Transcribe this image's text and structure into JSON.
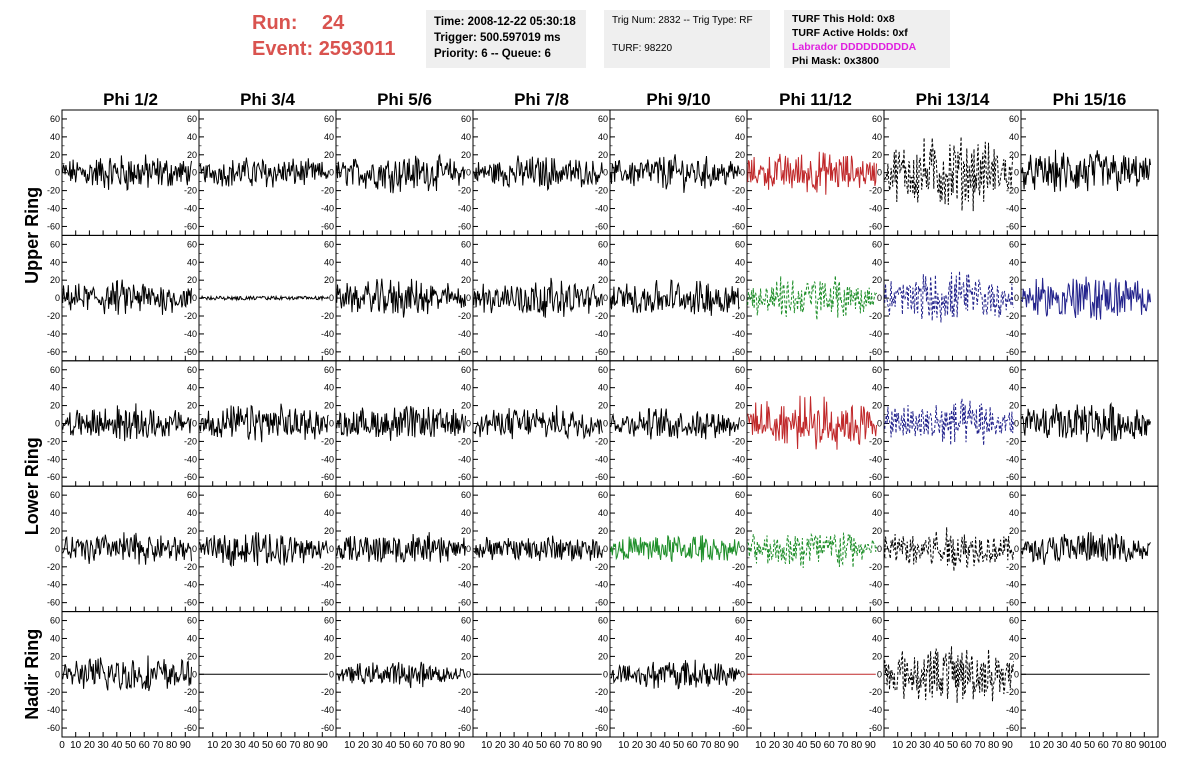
{
  "header": {
    "run_label": "Run:",
    "run_value": "24",
    "event_label": "Event:",
    "event_value": "2593011",
    "time_info": [
      "Time: 2008-12-22 05:30:18",
      "Trigger: 500.597019 ms",
      "Priority: 6 -- Queue: 6"
    ],
    "trig_info": [
      "Trig Num: 2832 -- Trig Type: RF",
      "",
      "TURF: 98220"
    ],
    "turf_info": [
      "TURF This Hold: 0x8",
      "TURF Active Holds: 0xf"
    ],
    "labrador": "Labrador DDDDDDDDDA",
    "phi_mask": "Phi Mask: 0x3800"
  },
  "chart_data": {
    "type": "line",
    "columns": [
      "Phi 1/2",
      "Phi 3/4",
      "Phi 5/6",
      "Phi 7/8",
      "Phi 9/10",
      "Phi 11/12",
      "Phi 13/14",
      "Phi 15/16"
    ],
    "rows": [
      "Upper Ring",
      "Upper Ring",
      "Lower Ring",
      "Lower Ring",
      "Nadir Ring"
    ],
    "row_labels": [
      "Upper Ring",
      "Lower Ring",
      "Nadir Ring"
    ],
    "xlim": [
      0,
      100
    ],
    "ylim": [
      -70,
      70
    ],
    "x_ticks": [
      0,
      10,
      20,
      30,
      40,
      50,
      60,
      70,
      80,
      90,
      100
    ],
    "y_ticks": [
      -60,
      -40,
      -20,
      0,
      20,
      40,
      60
    ],
    "colors": {
      "black": "#000000",
      "red": "#c0282a",
      "green": "#1f8f2a",
      "blue": "#23238c"
    },
    "panels": [
      [
        "black",
        "black",
        "black",
        "black",
        "black",
        "red",
        "black-dashed",
        "black"
      ],
      [
        "black",
        "black-flat",
        "black",
        "black",
        "black",
        "green-dashed",
        "blue-dashed",
        "blue"
      ],
      [
        "black",
        "black",
        "black",
        "black",
        "black",
        "red",
        "blue-dashed",
        "black"
      ],
      [
        "black",
        "black",
        "black",
        "black",
        "green",
        "green-dashed",
        "black-dashed",
        "black"
      ],
      [
        "black",
        "black-zero",
        "black",
        "black-zero",
        "black",
        "red-zero",
        "black-dashed",
        "black-zero"
      ]
    ],
    "amplitudes": [
      [
        18,
        15,
        18,
        16,
        17,
        20,
        35,
        22
      ],
      [
        17,
        2,
        18,
        18,
        18,
        22,
        25,
        22
      ],
      [
        17,
        18,
        17,
        16,
        15,
        25,
        22,
        20
      ],
      [
        16,
        16,
        16,
        14,
        14,
        20,
        20,
        16
      ],
      [
        18,
        0,
        12,
        0,
        14,
        0,
        28,
        0
      ]
    ]
  }
}
